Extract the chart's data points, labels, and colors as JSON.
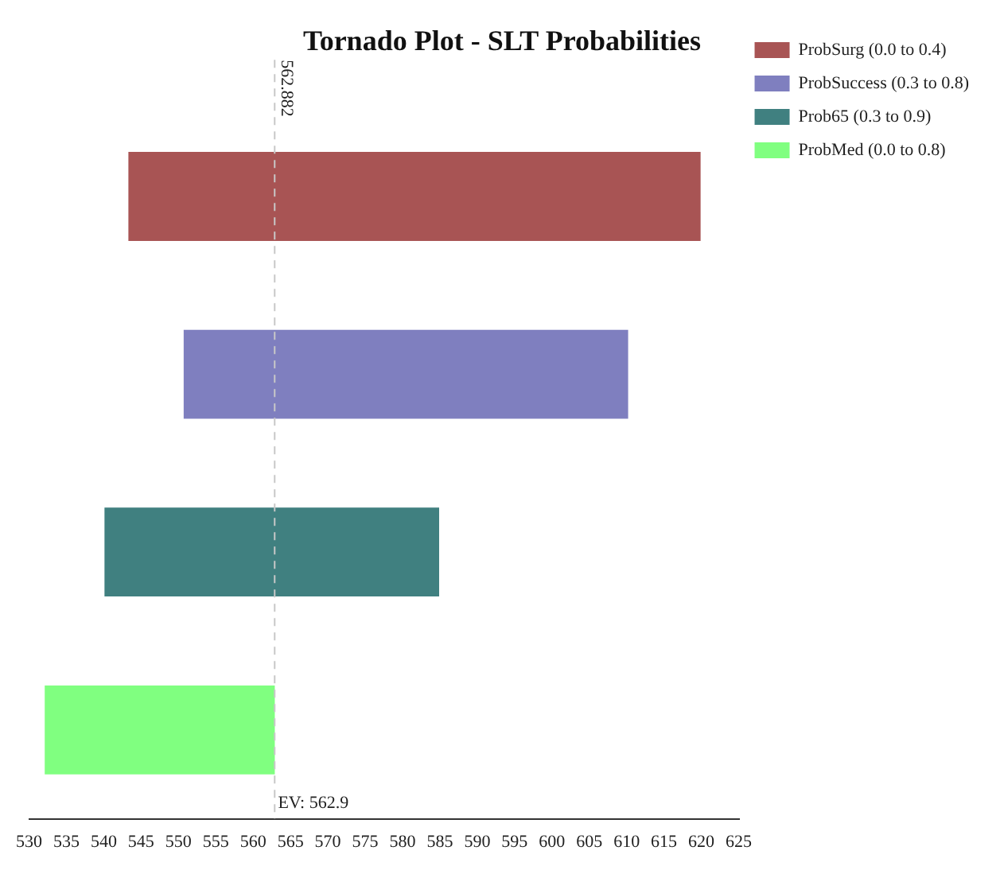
{
  "chart_data": {
    "type": "bar",
    "orientation": "horizontal",
    "title": "Tornado Plot - SLT Probabilities",
    "categories": [
      null,
      null,
      null,
      null
    ],
    "series": [
      {
        "name": "ProbSurg (0.0 to 0.4)",
        "color": "#a85454",
        "values": [
          76.6,
          null,
          null,
          null
        ],
        "base": [
          543.3,
          null,
          null,
          null
        ]
      },
      {
        "name": "ProbSuccess (0.3 to 0.8)",
        "color": "#7f7fbf",
        "values": [
          null,
          59.5,
          null,
          null
        ],
        "base": [
          null,
          550.7,
          null,
          null
        ]
      },
      {
        "name": "Prob65 (0.3 to 0.9)",
        "color": "#408080",
        "values": [
          null,
          null,
          44.8,
          null
        ],
        "base": [
          null,
          null,
          540.1,
          null
        ]
      },
      {
        "name": "ProbMed (0.0 to 0.8)",
        "color": "#80ff80",
        "values": [
          null,
          null,
          null,
          30.8
        ],
        "base": [
          null,
          null,
          null,
          532.1
        ]
      }
    ],
    "xlim": [
      530,
      625
    ],
    "xticks": [
      530,
      535,
      540,
      545,
      550,
      555,
      560,
      565,
      570,
      575,
      580,
      585,
      590,
      595,
      600,
      605,
      610,
      615,
      620,
      625
    ],
    "ref_lines": [
      {
        "axis": "x",
        "value": 562.882,
        "label": "562.882",
        "color": "#c8c8c8",
        "line_style": "dashed"
      }
    ],
    "annotations": [
      {
        "text": "EV: 562.9",
        "x": 562.9
      }
    ],
    "grid": false,
    "legend": "top right"
  }
}
